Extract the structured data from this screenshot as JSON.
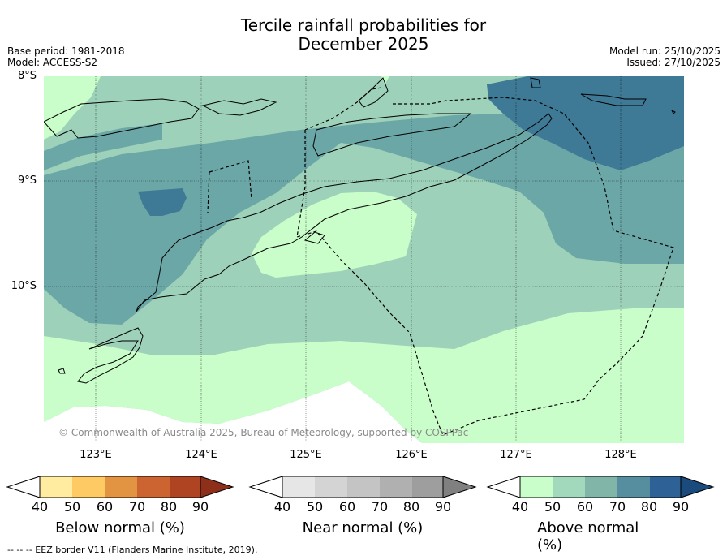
{
  "title": {
    "line1": "Tercile rainfall probabilities for",
    "line2": "December 2025"
  },
  "meta": {
    "base_period": "Base period: 1981-2018",
    "model": "Model: ACCESS-S2",
    "model_run": "Model run: 25/10/2025",
    "issued": "Issued: 27/10/2025"
  },
  "map": {
    "lat_labels": [
      "8°S",
      "9°S",
      "10°S"
    ],
    "lon_labels": [
      "123°E",
      "124°E",
      "125°E",
      "126°E",
      "127°E",
      "128°E"
    ],
    "copyright": "© Commonwealth of Australia 2025, Bureau of Meteorology, supported by COSPPac",
    "region_colors": {
      "above_40_50": "#c9fdc9",
      "above_50_60": "#9dd1b9",
      "above_60_70": "#6ca7a7",
      "above_70_80": "#3e7996",
      "ocean_no_skill": "#ffffff"
    }
  },
  "colorbars": [
    {
      "name": "Below normal (%)",
      "ticks": [
        "40",
        "50",
        "60",
        "70",
        "80",
        "90"
      ],
      "colors": [
        "#ffffff",
        "#ffeca0",
        "#fdca63",
        "#e39443",
        "#cc6431",
        "#ae4422",
        "#8e2f1a"
      ]
    },
    {
      "name": "Near normal (%)",
      "ticks": [
        "40",
        "50",
        "60",
        "70",
        "80",
        "90"
      ],
      "colors": [
        "#ffffff",
        "#e6e6e6",
        "#d4d4d4",
        "#c4c4c4",
        "#b0b0b0",
        "#9e9e9e",
        "#808080"
      ]
    },
    {
      "name": "Above normal (%)",
      "ticks": [
        "40",
        "50",
        "60",
        "70",
        "80",
        "90"
      ],
      "colors": [
        "#ffffff",
        "#c9fdc9",
        "#a2d8bb",
        "#80b5a8",
        "#568e9f",
        "#2e6296",
        "#1b4a7c"
      ]
    }
  ],
  "footnote": "--  --  -- EEZ border V11 (Flanders Marine Institute, 2019)."
}
